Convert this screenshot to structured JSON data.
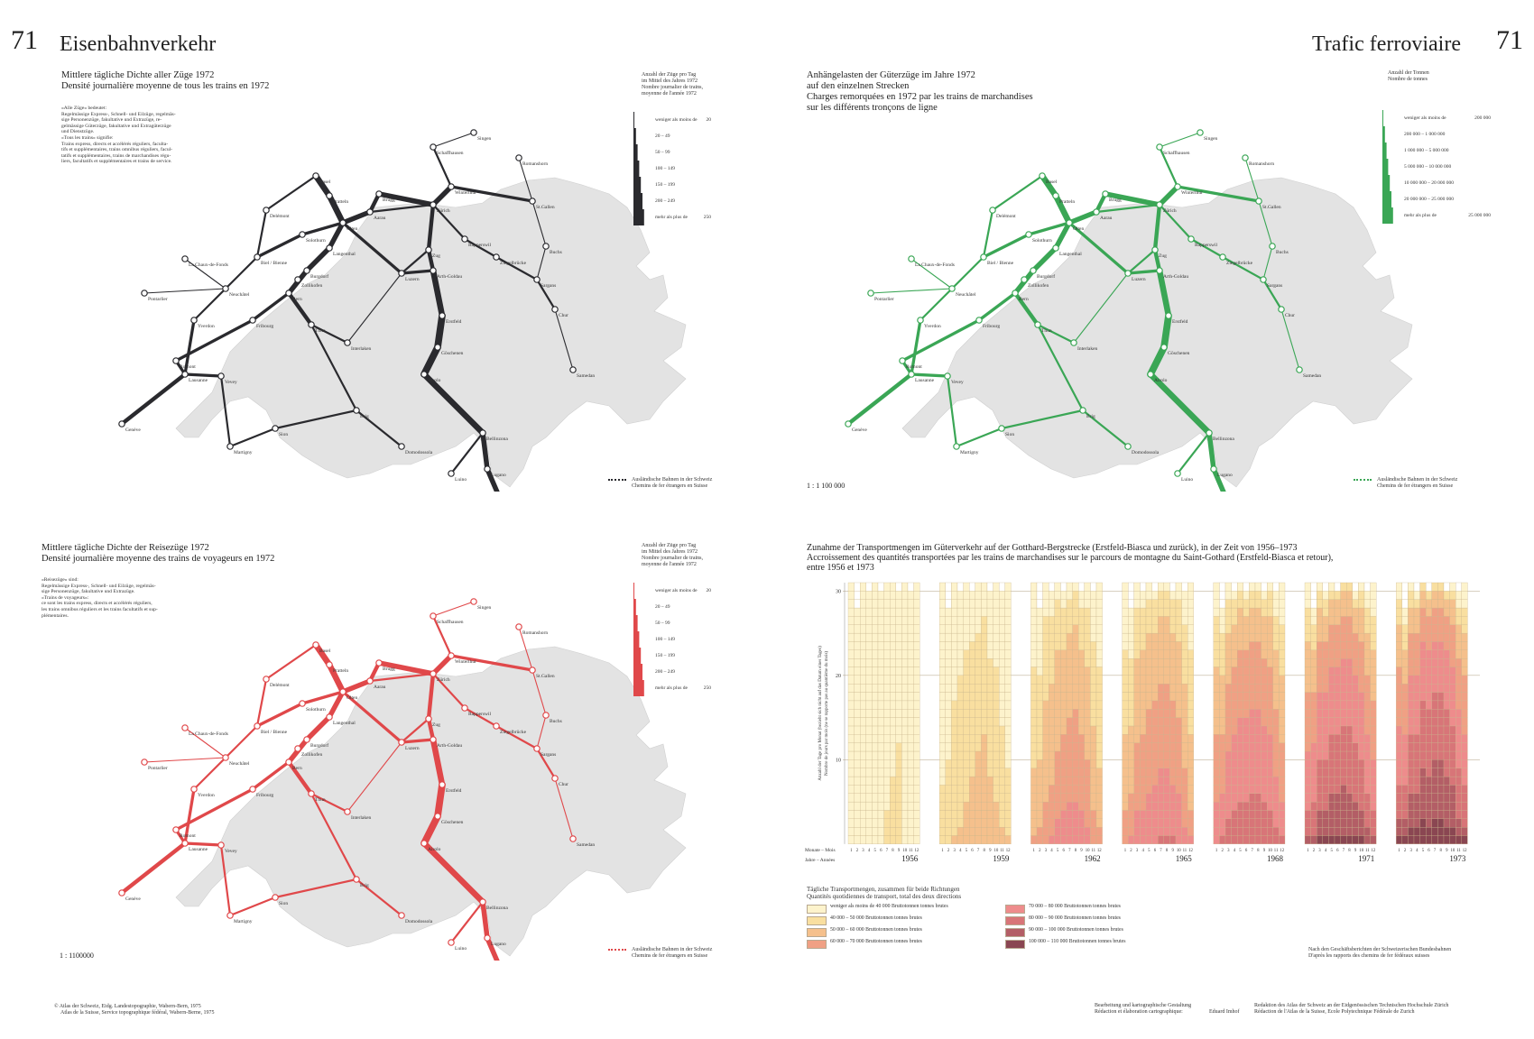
{
  "page_number": "71",
  "title_de": "Eisenbahnverkehr",
  "title_fr": "Trafic ferroviaire",
  "colors": {
    "all_trains": "#2a2a2e",
    "freight": "#3aa655",
    "passenger": "#e0484a",
    "land": "#e3e3e3"
  },
  "map1": {
    "title_de": "Mittlere tägliche Dichte aller Züge 1972",
    "title_fr": "Densité journalière moyenne de tous les trains en 1972",
    "note": [
      "«Alle Züge» bedeutet:",
      "Regelmässige Express-, Schnell- und Eilzüge, regelmäs-",
      "sige Personenzüge, fakultative und Extrazüge, re-",
      "gelmässige Güterzüge, fakultative und Extragüterzüge",
      "und Dienstzüge.",
      "«Tous les trains» signifie:",
      "Trains express, directs et accélérés réguliers, faculta-",
      "tifs et supplémentaires, trains omnibus réguliers, facul-",
      "tatifs et supplémentaires, trains de marchandises régu-",
      "liers, facultatifs et supplémentaires et trains de service."
    ],
    "legend_title": [
      "Anzahl der Züge pro Tag",
      "im Mittel des Jahres 1972",
      "Nombre journalier de trains,",
      "moyenne de l'année 1972"
    ],
    "legend_classes": [
      "weniger als moins de",
      "20 – 49",
      "50 – 99",
      "100 – 149",
      "150 – 199",
      "200 – 249",
      "mehr als plus de"
    ],
    "legend_values": [
      "20",
      "",
      "",
      "",
      "",
      "",
      "250"
    ],
    "foreign_de": "Ausländische Bahnen in der Schweiz",
    "foreign_fr": "Chemins de fer étrangers en Suisse"
  },
  "map2": {
    "title_de": [
      "Anhängelasten der Güterzüge im Jahre 1972",
      "auf den einzelnen Strecken"
    ],
    "title_fr": [
      "Charges remorquées en 1972 par les trains de marchandises",
      "sur les différents tronçons de ligne"
    ],
    "legend_title": [
      "Anzahl der Tonnen",
      "Nombre de tonnes"
    ],
    "legend_classes": [
      "weniger als moins de",
      "200 000 – 1 000 000",
      "1 000 000 – 5 000 000",
      "5 000 000 – 10 000 000",
      "10 000 000 – 20 000 000",
      "20 000 000 – 25 000 000",
      "mehr als plus de"
    ],
    "legend_values": [
      "200 000",
      "",
      "",
      "",
      "",
      "",
      "25 000 000"
    ],
    "scale": "1 : 1 100 000",
    "foreign_de": "Ausländische Bahnen in der Schweiz",
    "foreign_fr": "Chemins de fer étrangers en Suisse"
  },
  "map3": {
    "title_de": "Mittlere tägliche Dichte der Reisezüge 1972",
    "title_fr": "Densité journalière moyenne des trains de voyageurs en 1972",
    "note": [
      "«Reisezüge» sind:",
      "Regelmässige Express-, Schnell- und Eilzüge, regelmäs-",
      "sige Personenzüge, fakultative und Extrazüge.",
      "«Trains de voyageurs»:",
      "ce sont les trains express, directs et accélérés réguliers,",
      "les trains omnibus réguliers et les trains facultatifs et sup-",
      "plémentaires."
    ],
    "legend_title": [
      "Anzahl der Züge pro Tag",
      "im Mittel des Jahres 1972",
      "Nombre journalier de trains,",
      "moyenne de l'année 1972"
    ],
    "legend_classes": [
      "weniger als moins de",
      "20 – 49",
      "50 – 99",
      "100 – 149",
      "150 – 199",
      "200 – 249",
      "mehr als plus de"
    ],
    "legend_values": [
      "20",
      "",
      "",
      "",
      "",
      "",
      "250"
    ],
    "scale": "1 : 1100000",
    "foreign_de": "Ausländische Bahnen in der Schweiz",
    "foreign_fr": "Chemins de fer étrangers en Suisse"
  },
  "places": [
    "Basel",
    "Schaffhausen",
    "Singen",
    "Romanshorn",
    "Winterthur",
    "St.Gallen",
    "Zürich",
    "Brugg",
    "Pratteln",
    "Olten",
    "Aarau",
    "Delémont",
    "Solothurn",
    "Langenthal",
    "Biel / Bienne",
    "Burgdorf",
    "Zollikofen",
    "Bern",
    "Neuchâtel",
    "Luzern",
    "Zug",
    "Rapperswil",
    "Ziegelbrücke",
    "Buchs",
    "Sargans",
    "Chur",
    "Arth-Goldau",
    "Erstfeld",
    "Göschenen",
    "Airolo",
    "Bellinzona",
    "Lugano",
    "Luino",
    "Chiasso",
    "Brig",
    "Thun",
    "Interlaken",
    "Fribourg",
    "Lausanne",
    "Vevey",
    "Romont",
    "Yverdon",
    "La Chaux-de-Fonds",
    "Pontarlier",
    "Genève",
    "Martigny",
    "Sion",
    "Domodossola",
    "Samedan"
  ],
  "chart": {
    "title_de": "Zunahme der Transportmengen im Güterverkehr auf der Gotthard-Bergstrecke (Erstfeld-Biasca und zurück), in der Zeit von 1956–1973",
    "title_fr": [
      "Accroissement des quantités transportées par les trains de marchandises sur le parcours de montagne du Saint-Gothard (Erstfeld-Biasca et retour),",
      "entre 1956 et 1973"
    ],
    "y_axis_label_de": "Anzahl der Tage pro Monat (bezieht sich nicht auf das Datum eines Tages)",
    "y_axis_label_fr": "Nombre de jours par mois (ne se rapporte pas au quantième du mois)",
    "month_row_label": "Monate – Mois",
    "year_row_label": "Jahre – Années",
    "years": [
      "1956",
      "1959",
      "1962",
      "1965",
      "1968",
      "1971",
      "1973"
    ],
    "months": [
      "1",
      "2",
      "3",
      "4",
      "5",
      "6",
      "7",
      "8",
      "9",
      "10",
      "11",
      "12"
    ],
    "y_ticks": [
      "10",
      "20",
      "30"
    ],
    "legend_title_de": "Tägliche Transportmengen, zusammen für beide Richtungen",
    "legend_title_fr": "Quantités quotidiennes de transport, total des deux directions",
    "legend": [
      {
        "from": "weniger als moins de",
        "to": "40 000",
        "unit": "Bruttotonnen tonnes brutes",
        "color": "#fdf3cc"
      },
      {
        "from": "40 000 –",
        "to": "50 000",
        "unit": "Bruttotonnen tonnes brutes",
        "color": "#f9dfa0"
      },
      {
        "from": "50 000 –",
        "to": "60 000",
        "unit": "Bruttotonnen tonnes brutes",
        "color": "#f5c08c"
      },
      {
        "from": "60 000 –",
        "to": "70 000",
        "unit": "Bruttotonnen tonnes brutes",
        "color": "#f0a084"
      },
      {
        "from": "70 000 –",
        "to": "80 000",
        "unit": "Bruttotonnen tonnes brutes",
        "color": "#ee8c8c"
      },
      {
        "from": "80 000 –",
        "to": "90 000",
        "unit": "Bruttotonnen tonnes brutes",
        "color": "#d87578"
      },
      {
        "from": "90 000 –",
        "to": "100 000",
        "unit": "Bruttotonnen tonnes brutes",
        "color": "#b35e66"
      },
      {
        "from": "100 000 –",
        "to": "110 000",
        "unit": "Bruttotonnen tonnes brutes",
        "color": "#8a4652"
      }
    ]
  },
  "chart_data": {
    "type": "heatmap",
    "title": "Zunahme der Transportmengen im Güterverkehr auf der Gotthard-Bergstrecke (Erstfeld-Biasca und zurück), in der Zeit von 1956–1973",
    "xlabel": "Monate – Mois / Jahre – Années",
    "ylabel": "Anzahl der Tage pro Monat (bezieht sich nicht auf das Datum eines Tages)",
    "ylim": [
      0,
      31
    ],
    "years": [
      "1956",
      "1959",
      "1962",
      "1965",
      "1968",
      "1971",
      "1973"
    ],
    "months": [
      "1",
      "2",
      "3",
      "4",
      "5",
      "6",
      "7",
      "8",
      "9",
      "10",
      "11",
      "12"
    ],
    "class_labels": [
      "<40 000",
      "40 000–50 000",
      "50 000–60 000",
      "60 000–70 000",
      "70 000–80 000",
      "80 000–90 000",
      "90 000–100 000",
      "100 000–110 000"
    ],
    "days_per_class_approx": {
      "1956": [
        [
          31,
          0,
          0,
          0,
          0,
          0,
          0,
          0
        ],
        [
          28,
          0,
          0,
          0,
          0,
          0,
          0,
          0
        ],
        [
          31,
          0,
          0,
          0,
          0,
          0,
          0,
          0
        ],
        [
          30,
          0,
          0,
          0,
          0,
          0,
          0,
          0
        ],
        [
          31,
          0,
          0,
          0,
          0,
          0,
          0,
          0
        ],
        [
          30,
          0,
          0,
          0,
          0,
          0,
          0,
          0
        ],
        [
          27,
          4,
          0,
          0,
          0,
          0,
          0,
          0
        ],
        [
          23,
          8,
          0,
          0,
          0,
          0,
          0,
          0
        ],
        [
          18,
          12,
          0,
          0,
          0,
          0,
          0,
          0
        ],
        [
          31,
          0,
          0,
          0,
          0,
          0,
          0,
          0
        ],
        [
          30,
          0,
          0,
          0,
          0,
          0,
          0,
          0
        ],
        [
          31,
          0,
          0,
          0,
          0,
          0,
          0,
          0
        ]
      ],
      "1959": [
        [
          24,
          7,
          0,
          0,
          0,
          0,
          0,
          0
        ],
        [
          18,
          10,
          0,
          0,
          0,
          0,
          0,
          0
        ],
        [
          14,
          16,
          1,
          0,
          0,
          0,
          0,
          0
        ],
        [
          10,
          18,
          2,
          0,
          0,
          0,
          0,
          0
        ],
        [
          8,
          18,
          5,
          0,
          0,
          0,
          0,
          0
        ],
        [
          6,
          16,
          8,
          0,
          0,
          0,
          0,
          0
        ],
        [
          6,
          14,
          11,
          0,
          0,
          0,
          0,
          0
        ],
        [
          4,
          14,
          13,
          0,
          0,
          0,
          0,
          0
        ],
        [
          8,
          14,
          8,
          0,
          0,
          0,
          0,
          0
        ],
        [
          10,
          16,
          5,
          0,
          0,
          0,
          0,
          0
        ],
        [
          16,
          12,
          2,
          0,
          0,
          0,
          0,
          0
        ],
        [
          22,
          8,
          1,
          0,
          0,
          0,
          0,
          0
        ]
      ],
      "1962": [
        [
          10,
          12,
          8,
          1,
          0,
          0,
          0,
          0
        ],
        [
          8,
          10,
          8,
          2,
          0,
          0,
          0,
          0
        ],
        [
          4,
          10,
          12,
          5,
          0,
          0,
          0,
          0
        ],
        [
          3,
          8,
          12,
          6,
          1,
          0,
          0,
          0
        ],
        [
          2,
          6,
          12,
          8,
          3,
          0,
          0,
          0
        ],
        [
          2,
          5,
          10,
          9,
          4,
          0,
          0,
          0
        ],
        [
          2,
          4,
          10,
          10,
          5,
          0,
          0,
          0
        ],
        [
          1,
          4,
          10,
          11,
          5,
          0,
          0,
          0
        ],
        [
          2,
          5,
          10,
          9,
          4,
          0,
          0,
          0
        ],
        [
          3,
          7,
          11,
          8,
          2,
          0,
          0,
          0
        ],
        [
          6,
          10,
          10,
          4,
          0,
          0,
          0,
          0
        ],
        [
          10,
          12,
          7,
          2,
          0,
          0,
          0,
          0
        ]
      ],
      "1965": [
        [
          8,
          10,
          9,
          4,
          0,
          0,
          0,
          0
        ],
        [
          6,
          8,
          8,
          5,
          1,
          0,
          0,
          0
        ],
        [
          3,
          6,
          10,
          8,
          4,
          0,
          0,
          0
        ],
        [
          2,
          5,
          10,
          9,
          4,
          0,
          0,
          0
        ],
        [
          2,
          4,
          9,
          10,
          6,
          0,
          0,
          0
        ],
        [
          1,
          4,
          8,
          10,
          7,
          0,
          0,
          0
        ],
        [
          1,
          3,
          8,
          10,
          8,
          1,
          0,
          0
        ],
        [
          1,
          3,
          8,
          10,
          8,
          1,
          0,
          0
        ],
        [
          1,
          4,
          8,
          10,
          6,
          1,
          0,
          0
        ],
        [
          2,
          5,
          9,
          9,
          6,
          0,
          0,
          0
        ],
        [
          4,
          7,
          10,
          7,
          2,
          0,
          0,
          0
        ],
        [
          8,
          10,
          9,
          3,
          1,
          0,
          0,
          0
        ]
      ],
      "1968": [
        [
          4,
          6,
          8,
          8,
          5,
          0,
          0,
          0
        ],
        [
          3,
          5,
          7,
          7,
          5,
          1,
          0,
          0
        ],
        [
          2,
          4,
          6,
          8,
          8,
          3,
          0,
          0
        ],
        [
          1,
          3,
          5,
          8,
          9,
          4,
          0,
          0
        ],
        [
          1,
          2,
          5,
          8,
          10,
          5,
          0,
          0
        ],
        [
          1,
          2,
          4,
          8,
          10,
          5,
          0,
          0
        ],
        [
          1,
          2,
          4,
          8,
          10,
          6,
          0,
          0
        ],
        [
          1,
          2,
          4,
          8,
          10,
          6,
          0,
          0
        ],
        [
          1,
          2,
          5,
          8,
          9,
          5,
          0,
          0
        ],
        [
          1,
          3,
          6,
          8,
          9,
          4,
          0,
          0
        ],
        [
          3,
          4,
          7,
          8,
          6,
          2,
          0,
          0
        ],
        [
          5,
          6,
          8,
          7,
          4,
          1,
          0,
          0
        ]
      ],
      "1971": [
        [
          3,
          4,
          6,
          7,
          7,
          3,
          1,
          0
        ],
        [
          2,
          3,
          5,
          6,
          7,
          4,
          1,
          0
        ],
        [
          1,
          2,
          4,
          6,
          8,
          6,
          3,
          1
        ],
        [
          1,
          2,
          3,
          6,
          8,
          6,
          3,
          1
        ],
        [
          1,
          1,
          3,
          5,
          8,
          7,
          5,
          1
        ],
        [
          0,
          1,
          3,
          5,
          8,
          7,
          5,
          1
        ],
        [
          0,
          1,
          3,
          5,
          8,
          7,
          6,
          1
        ],
        [
          0,
          1,
          3,
          5,
          8,
          8,
          5,
          1
        ],
        [
          1,
          1,
          3,
          5,
          8,
          7,
          4,
          1
        ],
        [
          1,
          2,
          4,
          6,
          8,
          6,
          3,
          1
        ],
        [
          2,
          3,
          5,
          7,
          7,
          4,
          2,
          0
        ],
        [
          4,
          4,
          6,
          7,
          6,
          3,
          1,
          0
        ]
      ],
      "1973": [
        [
          2,
          3,
          5,
          7,
          7,
          4,
          2,
          1
        ],
        [
          2,
          3,
          4,
          6,
          6,
          4,
          2,
          1
        ],
        [
          1,
          2,
          3,
          5,
          7,
          7,
          4,
          2
        ],
        [
          1,
          1,
          3,
          5,
          7,
          7,
          4,
          2
        ],
        [
          0,
          1,
          2,
          4,
          7,
          8,
          6,
          3
        ],
        [
          0,
          1,
          2,
          4,
          7,
          8,
          6,
          2
        ],
        [
          0,
          1,
          2,
          4,
          6,
          8,
          7,
          3
        ],
        [
          0,
          1,
          2,
          4,
          6,
          8,
          7,
          3
        ],
        [
          0,
          1,
          2,
          4,
          7,
          8,
          6,
          2
        ],
        [
          1,
          1,
          3,
          5,
          7,
          7,
          5,
          2
        ],
        [
          2,
          2,
          4,
          6,
          7,
          6,
          2,
          1
        ],
        [
          3,
          3,
          5,
          7,
          6,
          5,
          1,
          1
        ]
      ]
    }
  },
  "source": [
    "Nach den Geschäftsberichten der Schweizerischen Bundesbahnen",
    "D'après les rapports des chemins de fer fédéraux suisses"
  ],
  "copyright": [
    "© Atlas der Schweiz, Eidg. Landestopographie, Wabern-Bern, 1975",
    "Atlas de la Suisse, Service topographique fédéral, Wabern-Berne, 1975"
  ],
  "credits": {
    "left": [
      "Bearbeitung und kartographische Gestaltung",
      "Rédaction et élaboration cartographique:"
    ],
    "name": "Eduard Imhof",
    "right": [
      "Redaktion des Atlas der Schweiz an der Eidgenössischen Technischen Hochschule Zürich",
      "Rédaction de l'Atlas de la Suisse, Ecole Polytechnique Fédérale de Zurich"
    ]
  }
}
